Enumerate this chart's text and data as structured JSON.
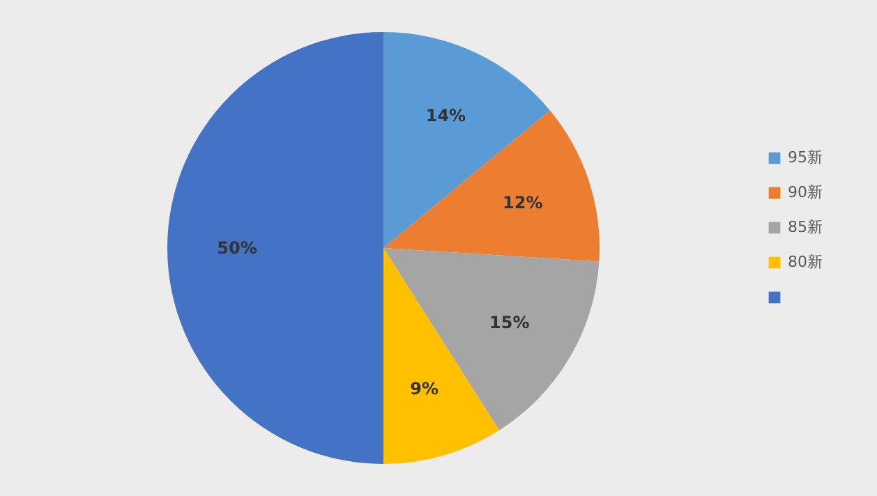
{
  "chart_data": {
    "type": "pie",
    "categories": [
      "95新",
      "90新",
      "85新",
      "80新",
      null
    ],
    "values": [
      14,
      12,
      15,
      9,
      50
    ],
    "colors": [
      "#5b9bd5",
      "#ed7d31",
      "#a5a5a5",
      "#ffc000",
      "#4472c4"
    ],
    "value_labels": [
      "14%",
      "12%",
      "15%",
      "9%",
      "50%"
    ],
    "legend": "right"
  }
}
